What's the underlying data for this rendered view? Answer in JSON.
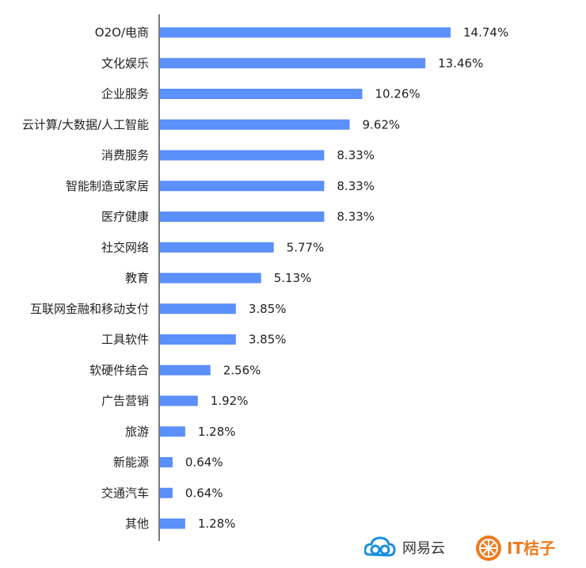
{
  "chart_data": {
    "type": "bar",
    "orientation": "horizontal",
    "categories": [
      "O2O/电商",
      "文化娱乐",
      "企业服务",
      "云计算/大数据/人工智能",
      "消费服务",
      "智能制造或家居",
      "医疗健康",
      "社交网络",
      "教育",
      "互联网金融和移动支付",
      "工具软件",
      "软硬件结合",
      "广告营销",
      "旅游",
      "新能源",
      "交通汽车",
      "其他"
    ],
    "values": [
      14.74,
      13.46,
      10.26,
      9.62,
      8.33,
      8.33,
      8.33,
      5.77,
      5.13,
      3.85,
      3.85,
      2.56,
      1.92,
      1.28,
      0.64,
      0.64,
      1.28
    ],
    "value_labels": [
      "14.74%",
      "13.46%",
      "10.26%",
      "9.62%",
      "8.33%",
      "8.33%",
      "8.33%",
      "5.77%",
      "5.13%",
      "3.85%",
      "3.85%",
      "2.56%",
      "1.92%",
      "1.28%",
      "0.64%",
      "0.64%",
      "1.28%"
    ],
    "title": "",
    "xlabel": "",
    "ylabel": "",
    "xlim": [
      0,
      14.74
    ],
    "grid": false,
    "bar_color": "#5b8ff9"
  },
  "logos": {
    "netease_text": "网易云",
    "itjuzi_text": "IT桔子",
    "netease_color": "#1a8fe0",
    "itjuzi_color": "#f07a1b"
  }
}
